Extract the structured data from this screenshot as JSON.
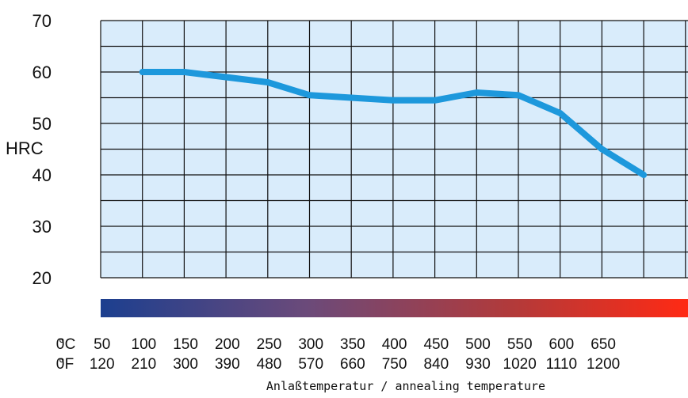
{
  "chart_data": {
    "type": "line",
    "title": "",
    "ylabel": "HRC",
    "xlabel": "Anlaßtemperatur / annealing temperature",
    "ylim": [
      20,
      70
    ],
    "y_ticks": [
      70,
      60,
      50,
      40,
      30,
      20
    ],
    "x_unit_celsius": "°C",
    "x_unit_fahrenheit": "°F",
    "x_ticks_celsius": [
      "0",
      "50",
      "100",
      "150",
      "200",
      "250",
      "300",
      "350",
      "400",
      "450",
      "500",
      "550",
      "600",
      "650"
    ],
    "x_ticks_fahrenheit": [
      "0",
      "120",
      "210",
      "300",
      "390",
      "480",
      "570",
      "660",
      "750",
      "840",
      "930",
      "1020",
      "1110",
      "1200"
    ],
    "grid": true,
    "colors": {
      "plot_bg": "#d9ecfb",
      "grid": "#111111",
      "line": "#1d98dc",
      "gradient": [
        "#1c3f8f",
        "#6b4a7a",
        "#b23a3a",
        "#ff2a14"
      ]
    },
    "series": [
      {
        "x": [
          50,
          100,
          150,
          200,
          250,
          300,
          350,
          400,
          450,
          500,
          550,
          600,
          650
        ],
        "values": [
          60,
          60,
          59,
          58,
          55.5,
          55,
          54.5,
          54.5,
          56,
          55.5,
          52,
          45,
          40
        ]
      }
    ]
  }
}
